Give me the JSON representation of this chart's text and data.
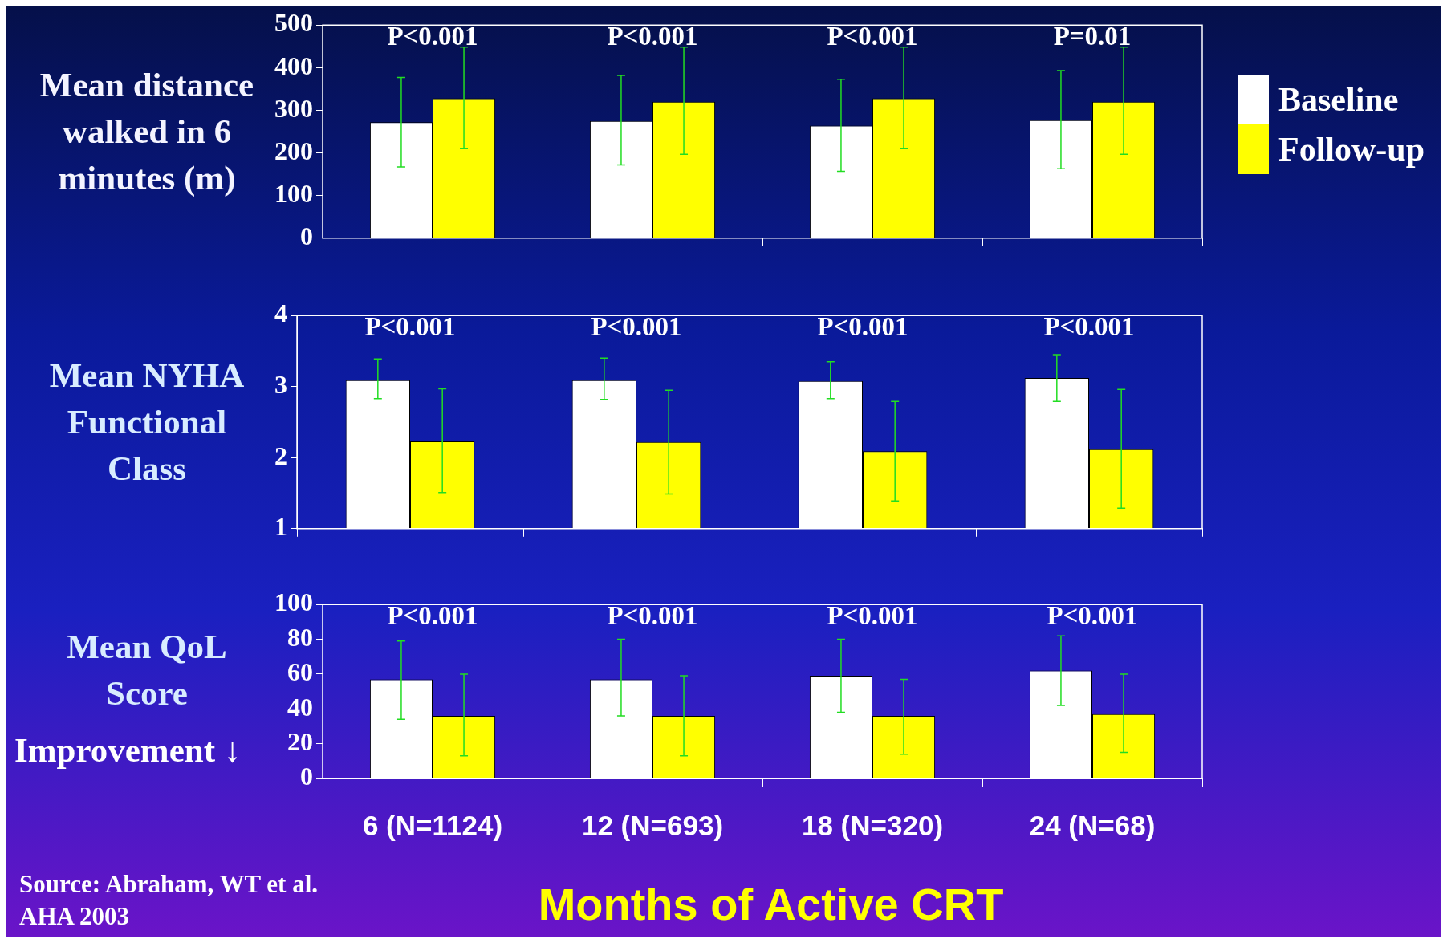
{
  "chart_data": [
    {
      "type": "bar",
      "ylabel": "Mean distance walked in 6 minutes (m)",
      "categories": [
        null,
        null,
        null,
        null
      ],
      "tick_labels": "y",
      "ylim": [
        0,
        500
      ],
      "yticks": [
        0,
        100,
        200,
        300,
        400,
        500
      ],
      "legend": "right",
      "series": [
        {
          "name": "Baseline",
          "color": "#ffffff",
          "values": [
            272,
            275,
            264,
            277
          ],
          "errors": [
            [
              167,
              377
            ],
            [
              172,
              382
            ],
            [
              157,
              373
            ],
            [
              163,
              393
            ]
          ]
        },
        {
          "name": "Follow-up",
          "color": "#ffff00",
          "values": [
            328,
            320,
            328,
            320
          ],
          "errors": [
            [
              210,
              448
            ],
            [
              197,
              448
            ],
            [
              210,
              448
            ],
            [
              197,
              448
            ]
          ]
        }
      ],
      "annotations": [
        "P<0.001",
        "P<0.001",
        "P<0.001",
        "P=0.01"
      ]
    },
    {
      "type": "bar",
      "ylabel": "Mean NYHA Functional Class",
      "categories": [
        null,
        null,
        null,
        null
      ],
      "tick_labels": "y",
      "ylim": [
        1,
        4
      ],
      "yticks": [
        1,
        2,
        3,
        4
      ],
      "series": [
        {
          "color": "#ffffff",
          "values": [
            3.09,
            3.09,
            3.08,
            3.12
          ],
          "errors": [
            [
              2.83,
              3.39
            ],
            [
              2.82,
              3.4
            ],
            [
              2.83,
              3.35
            ],
            [
              2.79,
              3.45
            ]
          ]
        },
        {
          "color": "#ffff00",
          "values": [
            2.23,
            2.22,
            2.09,
            2.12
          ],
          "errors": [
            [
              1.51,
              2.97
            ],
            [
              1.49,
              2.95
            ],
            [
              1.39,
              2.79
            ],
            [
              1.29,
              2.96
            ]
          ]
        }
      ],
      "annotations": [
        "P<0.001",
        "P<0.001",
        "P<0.001",
        "P<0.001"
      ]
    },
    {
      "type": "bar",
      "ylabel": "Mean QoL Score",
      "xlabel": "Months of Active CRT",
      "categories": [
        "6 (N=1124)",
        "12 (N=693)",
        "18 (N=320)",
        "24 (N=68)"
      ],
      "ylim": [
        0,
        100
      ],
      "yticks": [
        0,
        20,
        40,
        60,
        80,
        100
      ],
      "series": [
        {
          "color": "#ffffff",
          "values": [
            57,
            57,
            59,
            62
          ],
          "errors": [
            [
              34,
              79
            ],
            [
              36,
              80
            ],
            [
              38,
              80
            ],
            [
              42,
              82
            ]
          ]
        },
        {
          "color": "#ffff00",
          "values": [
            36,
            36,
            36,
            37
          ],
          "errors": [
            [
              13,
              60
            ],
            [
              13,
              59
            ],
            [
              14,
              57
            ],
            [
              15,
              60
            ]
          ]
        }
      ],
      "annotations": [
        "P<0.001",
        "P<0.001",
        "P<0.001",
        "P<0.001",
        "Improvement ↓",
        "Source: Abraham, WT et al. AHA 2003"
      ]
    }
  ]
}
